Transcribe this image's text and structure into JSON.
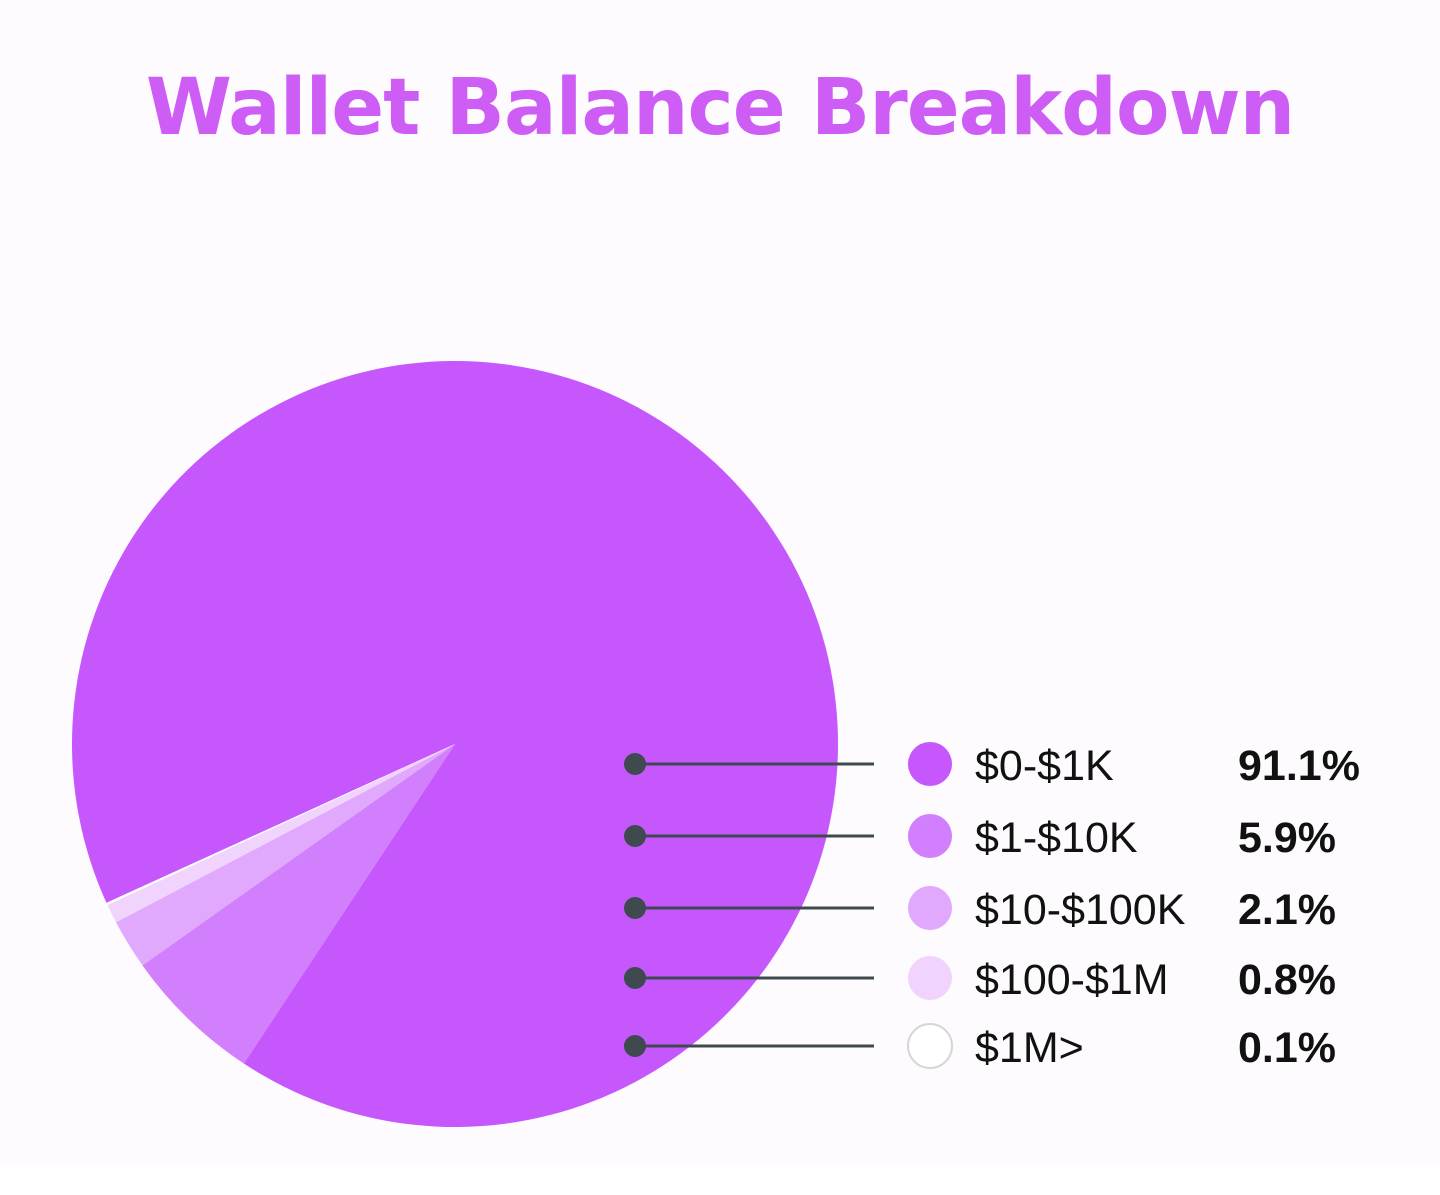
{
  "chart_data": {
    "type": "pie",
    "title": "Wallet Balance Breakdown",
    "categories": [
      "$0-$1K",
      "$1-$10K",
      "$10-$100K",
      "$100-$1M",
      "$1M>"
    ],
    "values": [
      91.1,
      5.9,
      2.1,
      0.8,
      0.1
    ],
    "value_labels": [
      "91.1%",
      "5.9%",
      "2.1%",
      "0.8%",
      "0.1%"
    ],
    "colors": [
      "#c557fd",
      "#d17ffc",
      "#e0a9fd",
      "#f0d4fe",
      "#ffffff"
    ],
    "legend_position": "right"
  }
}
